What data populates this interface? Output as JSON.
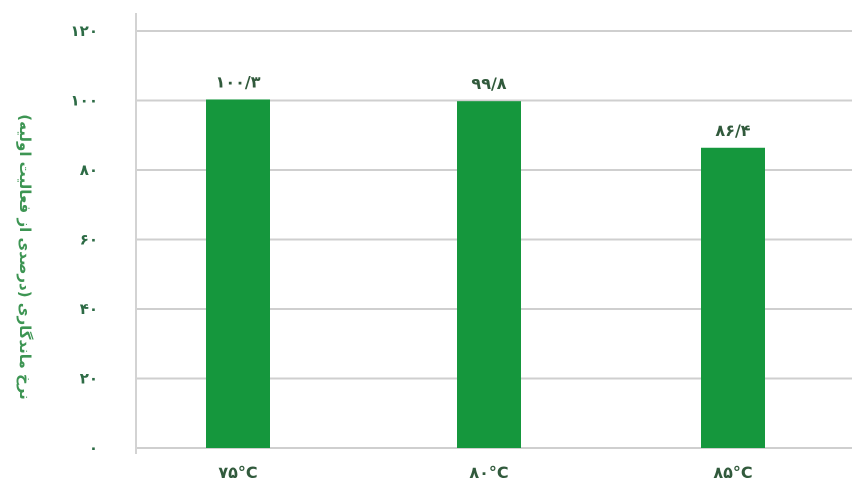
{
  "chart_data": {
    "type": "bar",
    "categories": [
      "۷۵°C",
      "۸۰°C",
      "۸۵°C"
    ],
    "values": [
      100.3,
      99.8,
      86.4
    ],
    "value_labels": [
      "۱۰۰/۳",
      "۹۹/۸",
      "۸۶/۴"
    ],
    "ylabel": "نرخ ماندگاری (درصدی از فعالیت اولیه)",
    "ylim": [
      0,
      120
    ],
    "yticks": [
      0,
      20,
      40,
      60,
      80,
      100,
      120
    ],
    "ytick_labels": [
      "۰",
      "۲۰",
      "۴۰",
      "۶۰",
      "۸۰",
      "۱۰۰",
      "۱۲۰"
    ],
    "grid": true,
    "colors": {
      "bar": "#15973d",
      "grid": "#cfcfcf",
      "axis_text": "#2d6b45",
      "ylabel": "#3d9553"
    }
  }
}
